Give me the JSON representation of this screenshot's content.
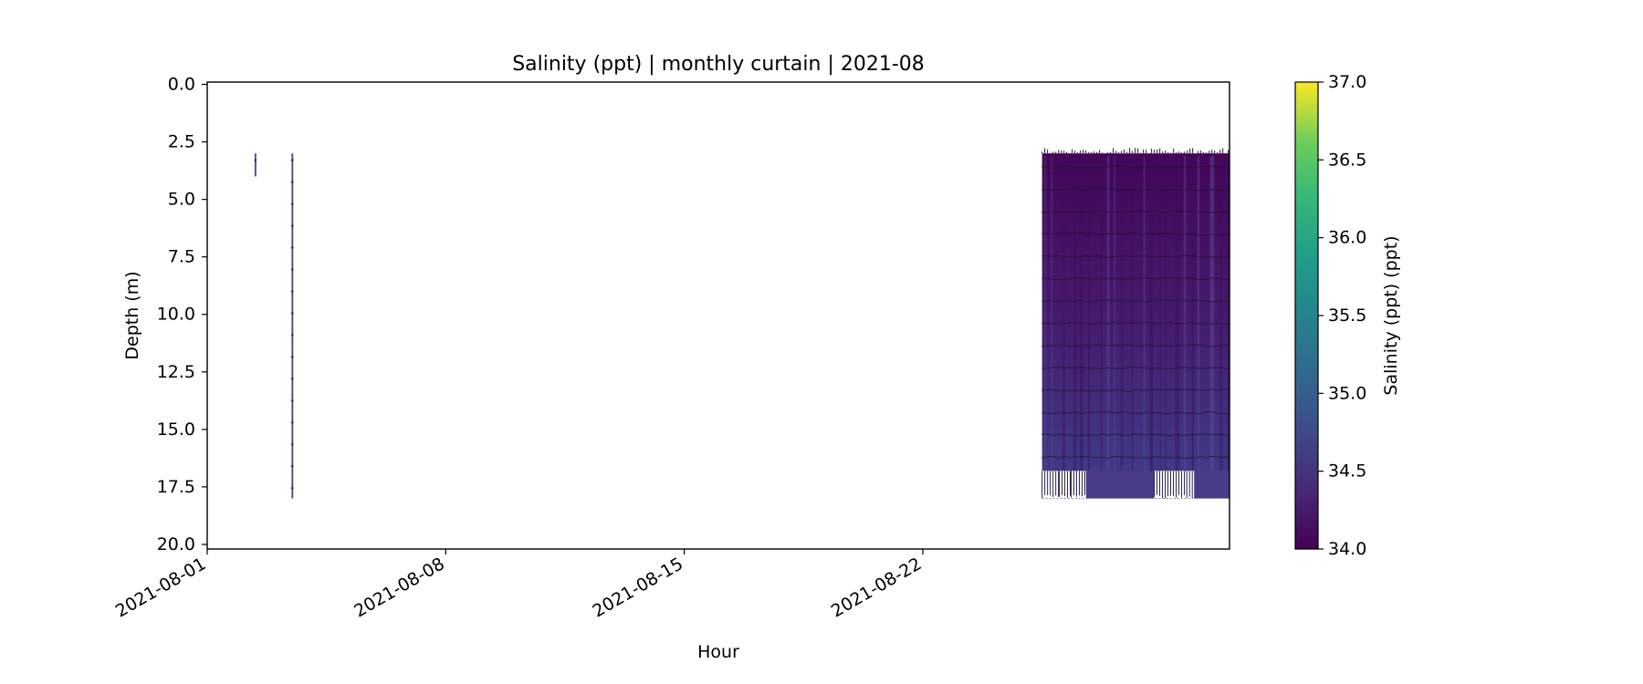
{
  "chart_data": {
    "type": "heatmap",
    "title": "Salinity (ppt) | monthly curtain | 2021-08",
    "xlabel": "Hour",
    "ylabel": "Depth (m)",
    "x_range": [
      "2021-08-01",
      "2021-08-31"
    ],
    "y_range": [
      20.2,
      -0.1
    ],
    "y_inverted": true,
    "x_ticks": [
      "2021-08-01",
      "2021-08-08",
      "2021-08-15",
      "2021-08-22"
    ],
    "y_ticks": [
      "0.0",
      "2.5",
      "5.0",
      "7.5",
      "10.0",
      "12.5",
      "15.0",
      "17.5",
      "20.0"
    ],
    "colorbar": {
      "label": "Salinity (ppt) (ppt)",
      "colormap": "viridis",
      "min": 34.0,
      "max": 37.0,
      "ticks": [
        "34.0",
        "34.5",
        "35.0",
        "35.5",
        "36.0",
        "36.5",
        "37.0"
      ]
    },
    "series": [
      {
        "x_start": "2021-08-02T10:00",
        "x_end": "2021-08-02T10:00",
        "depth_top": 3.0,
        "depth_bottom": 4.0,
        "salinity_approx": 34.2
      },
      {
        "x_start": "2021-08-03T12:00",
        "x_end": "2021-08-03T12:00",
        "depth_top": 3.0,
        "depth_bottom": 18.0,
        "salinity_approx": 34.2
      },
      {
        "x_start": "2021-08-25T12:00",
        "x_end": "2021-08-31T23:00",
        "depth_top": 3.0,
        "depth_bottom": 18.0,
        "salinity_top_approx": 34.05,
        "salinity_bottom_approx": 34.45
      }
    ],
    "grid": false,
    "legend": "none"
  }
}
